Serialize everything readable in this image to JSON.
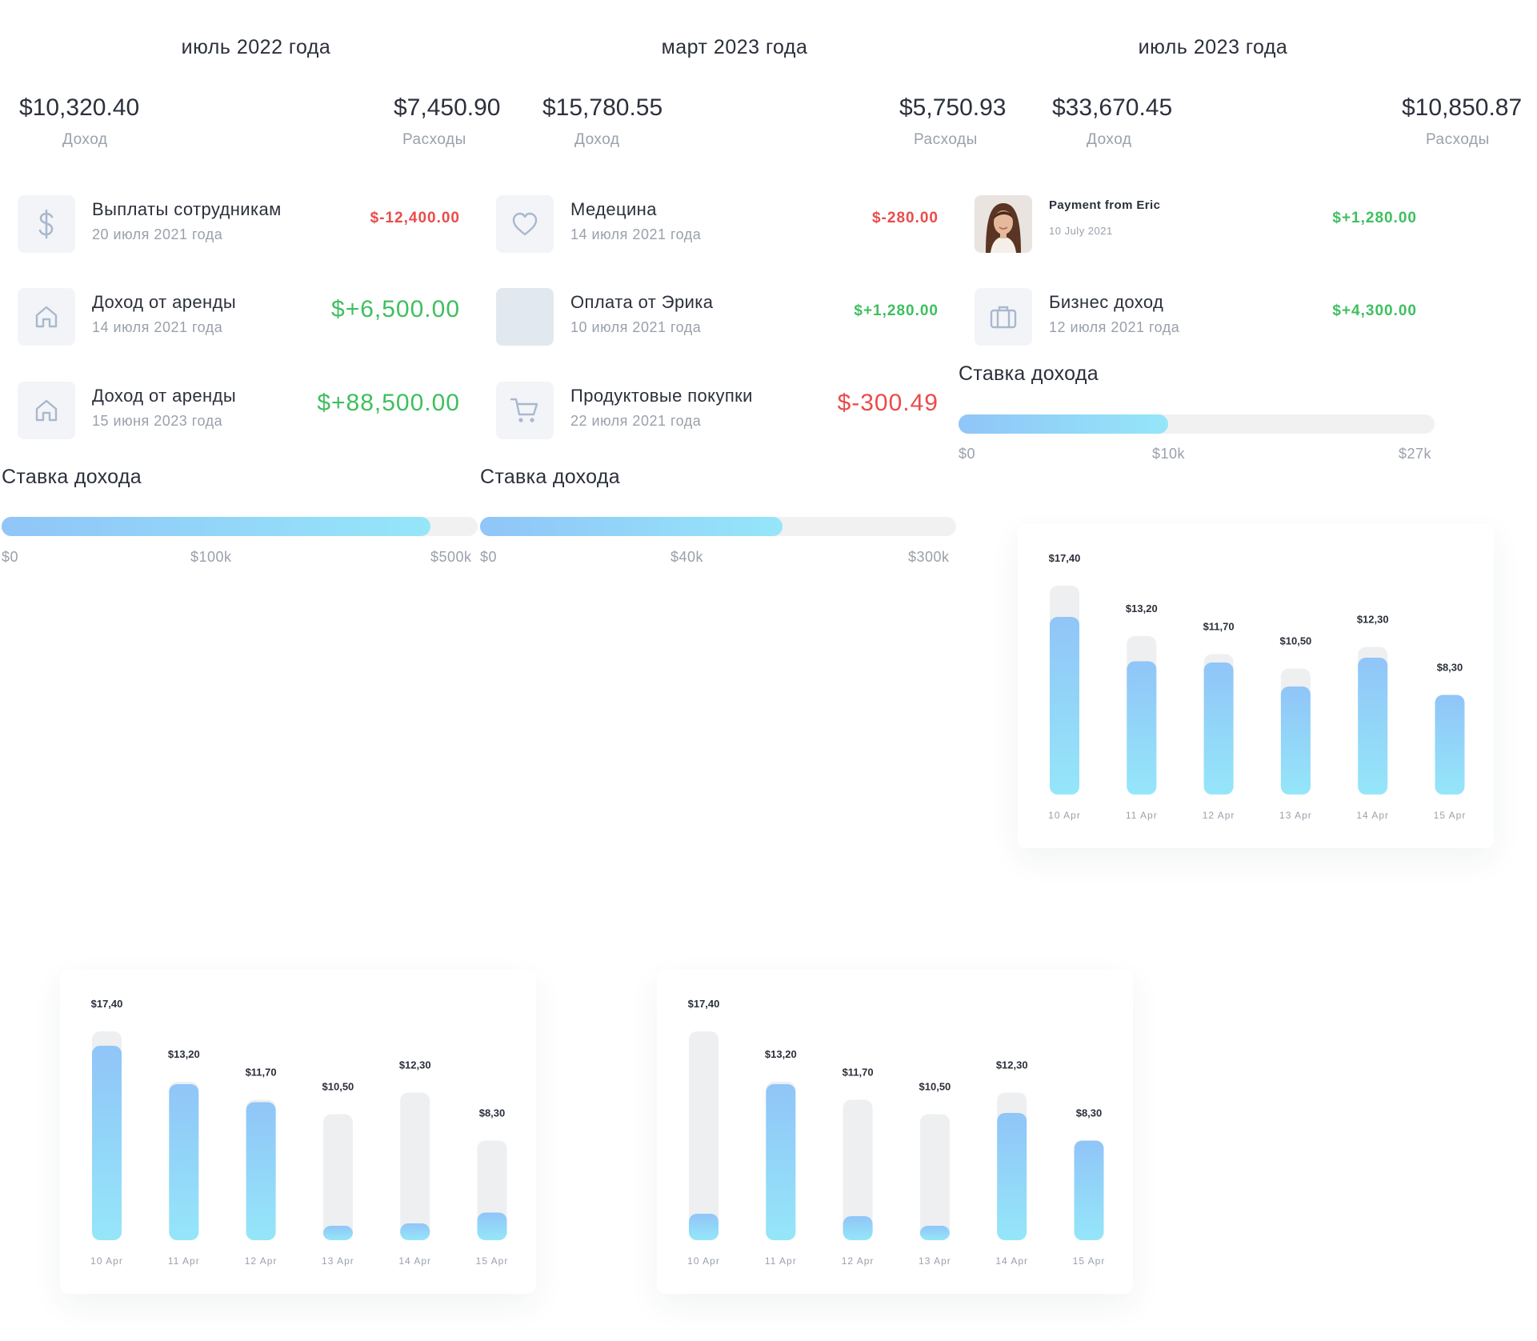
{
  "colors": {
    "negative": "#eb4b4b",
    "positive": "#3fbf5f",
    "bar_fill_top": "#90c5f8",
    "bar_fill_bottom": "#95e6f9",
    "bar_track": "#eeeff1"
  },
  "panels": [
    {
      "title": "июль 2022 года",
      "income": "$10,320.40",
      "income_label": "Доход",
      "expenses": "$7,450.90",
      "expenses_label": "Расходы",
      "transactions": [
        {
          "icon": "dollar-icon",
          "title": "Выплаты сотрудникам",
          "date": "20 июля 2021 года",
          "amount": "$-12,400.00"
        },
        {
          "icon": "home-icon",
          "title": "Доход от аренды",
          "date": "14 июля 2021 года",
          "amount": "$+6,500.00"
        },
        {
          "icon": "home-icon",
          "title": "Доход от аренды",
          "date": "15 июня 2023 года",
          "amount": "$+88,500.00"
        }
      ],
      "rate": {
        "title": "Ставка дохода",
        "progress": 0.9,
        "ticks": [
          "$0",
          "$100k",
          "$500k"
        ]
      }
    },
    {
      "title": "март 2023 года",
      "income": "$15,780.55",
      "income_label": "Доход",
      "expenses": "$5,750.93",
      "expenses_label": "Расходы",
      "transactions": [
        {
          "icon": "heart-icon",
          "title": "Медецина",
          "date": "14 июля 2021 года",
          "amount": "$-280.00"
        },
        {
          "icon": "placeholder-icon",
          "title": "Оплата от Эрика",
          "date": "10 июля 2021 года",
          "amount": "$+1,280.00"
        },
        {
          "icon": "cart-icon",
          "title": "Продуктовые покупки",
          "date": "22 июля 2021 года",
          "amount": "$-300.49"
        }
      ],
      "rate": {
        "title": "Ставка дохода",
        "progress": 0.635,
        "ticks": [
          "$0",
          "$40k",
          "$300k"
        ]
      }
    },
    {
      "title": "июль 2023 года",
      "income": "$33,670.45",
      "income_label": "Доход",
      "expenses": "$10,850.87",
      "expenses_label": "Расходы",
      "transactions": [
        {
          "icon": "avatar",
          "title": "Payment from Eric",
          "date": "10 July 2021",
          "amount": "$+1,280.00"
        },
        {
          "icon": "briefcase-icon",
          "title": "Бизнес доход",
          "date": "12 июля 2021 года",
          "amount": "$+4,300.00"
        }
      ],
      "rate": {
        "title": "Ставка дохода",
        "progress": 0.44,
        "ticks": [
          "$0",
          "$10k",
          "$27k"
        ]
      }
    }
  ],
  "chart_data": [
    {
      "type": "bar",
      "title": "",
      "categories": [
        "10 Apr",
        "11 Apr",
        "12 Apr",
        "13 Apr",
        "14 Apr",
        "15 Apr"
      ],
      "labels": [
        "$17,40",
        "$13,20",
        "$11,70",
        "$10,50",
        "$12,30",
        "$8,30"
      ],
      "values": [
        17.4,
        13.2,
        11.7,
        10.5,
        12.3,
        8.3
      ],
      "filled": [
        14.8,
        11.1,
        11.0,
        9.0,
        11.4,
        9.8
      ],
      "ylim": [
        0,
        20
      ]
    },
    {
      "type": "bar",
      "title": "",
      "categories": [
        "10 Apr",
        "11 Apr",
        "12 Apr",
        "13 Apr",
        "14 Apr",
        "15 Apr"
      ],
      "labels": [
        "$17,40",
        "$13,20",
        "$11,70",
        "$10,50",
        "$12,30",
        "$8,30"
      ],
      "values": [
        17.4,
        13.2,
        11.7,
        10.5,
        12.3,
        8.3
      ],
      "filled": [
        16.2,
        13.0,
        11.5,
        1.2,
        1.4,
        2.3
      ],
      "ylim": [
        0,
        20
      ]
    },
    {
      "type": "bar",
      "title": "",
      "categories": [
        "10 Apr",
        "11 Apr",
        "12 Apr",
        "13 Apr",
        "14 Apr",
        "15 Apr"
      ],
      "labels": [
        "$17,40",
        "$13,20",
        "$11,70",
        "$10,50",
        "$12,30",
        "$8,30"
      ],
      "values": [
        17.4,
        13.2,
        11.7,
        10.5,
        12.3,
        8.3
      ],
      "filled": [
        2.2,
        13.0,
        2.0,
        1.2,
        10.6,
        9.8
      ],
      "ylim": [
        0,
        20
      ]
    }
  ]
}
